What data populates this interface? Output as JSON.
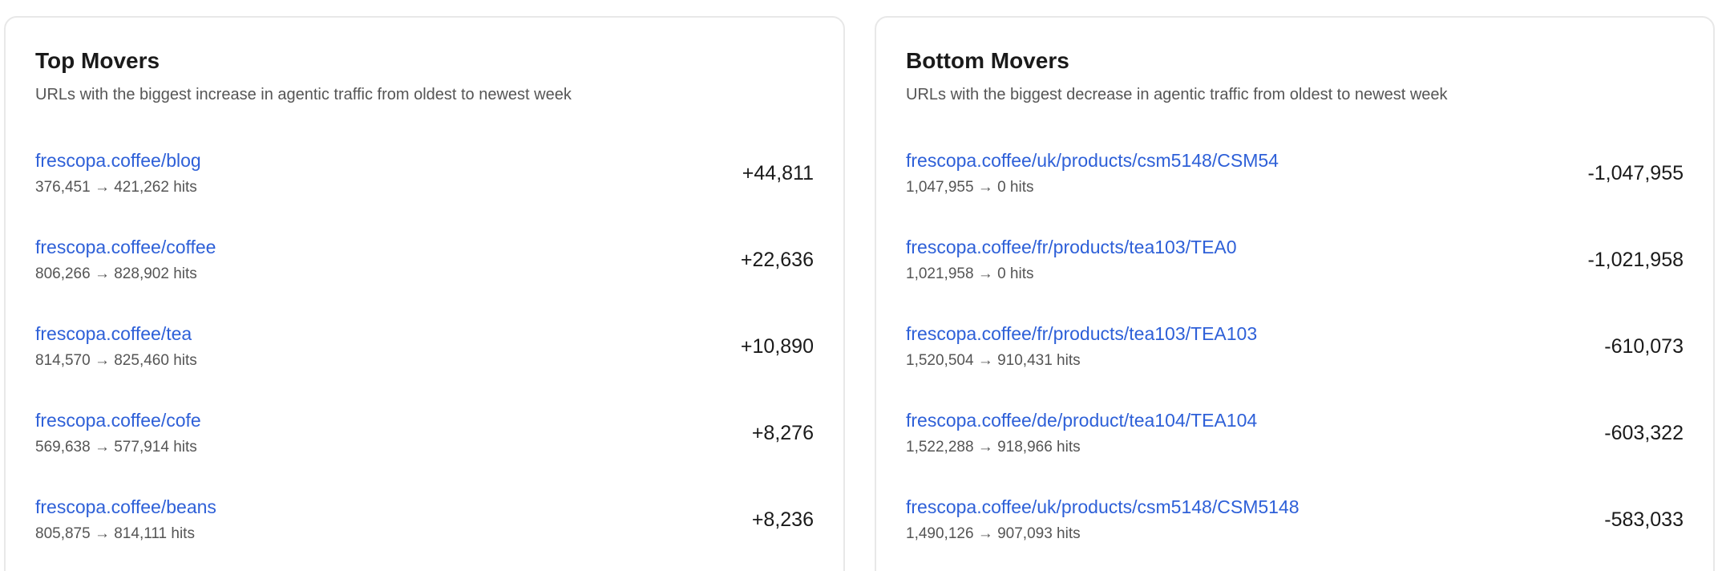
{
  "top_movers": {
    "title": "Top Movers",
    "subtitle": "URLs with the biggest increase in agentic traffic from oldest to newest week",
    "items": [
      {
        "url": "frescopa.coffee/blog",
        "hits": "376,451 → 421,262 hits",
        "change": "+44,811"
      },
      {
        "url": "frescopa.coffee/coffee",
        "hits": "806,266 → 828,902 hits",
        "change": "+22,636"
      },
      {
        "url": "frescopa.coffee/tea",
        "hits": "814,570 → 825,460 hits",
        "change": "+10,890"
      },
      {
        "url": "frescopa.coffee/cofe",
        "hits": "569,638 → 577,914 hits",
        "change": "+8,276"
      },
      {
        "url": "frescopa.coffee/beans",
        "hits": "805,875 → 814,111 hits",
        "change": "+8,236"
      }
    ]
  },
  "bottom_movers": {
    "title": "Bottom Movers",
    "subtitle": "URLs with the biggest decrease in agentic traffic from oldest to newest week",
    "items": [
      {
        "url": "frescopa.coffee/uk/products/csm5148/CSM54",
        "hits": "1,047,955 → 0 hits",
        "change": "-1,047,955"
      },
      {
        "url": "frescopa.coffee/fr/products/tea103/TEA0",
        "hits": "1,021,958 → 0 hits",
        "change": "-1,021,958"
      },
      {
        "url": "frescopa.coffee/fr/products/tea103/TEA103",
        "hits": "1,520,504 → 910,431 hits",
        "change": "-610,073"
      },
      {
        "url": "frescopa.coffee/de/product/tea104/TEA104",
        "hits": "1,522,288 → 918,966 hits",
        "change": "-603,322"
      },
      {
        "url": "frescopa.coffee/uk/products/csm5148/CSM5148",
        "hits": "1,490,126 → 907,093 hits",
        "change": "-583,033"
      }
    ]
  },
  "colors": {
    "link": "#2e60d8",
    "text": "#1a1a1a",
    "muted": "#555555",
    "border": "#e8e8e8"
  }
}
